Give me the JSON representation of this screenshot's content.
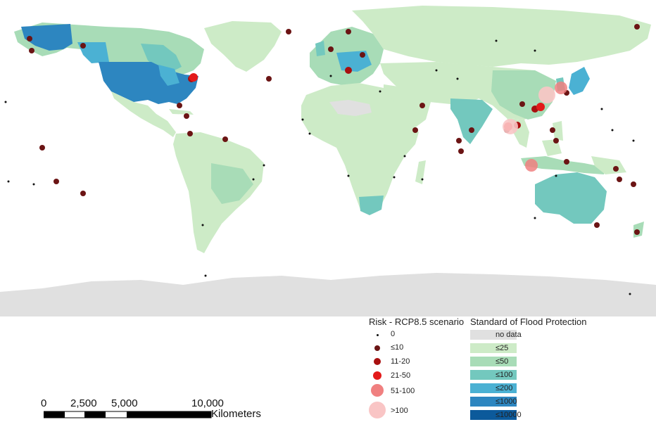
{
  "risk_legend": {
    "title": "Risk - RCP8.5 scenario",
    "items": [
      {
        "label": "0",
        "color": "#111111"
      },
      {
        "label": "≤10",
        "color": "#6b1414"
      },
      {
        "label": "11-20",
        "color": "#a80f0f"
      },
      {
        "label": "21-50",
        "color": "#e31a1a"
      },
      {
        "label": "51-100",
        "color": "#f08080"
      },
      {
        "label": ">100",
        "color": "#f9c5c5"
      }
    ]
  },
  "protection_legend": {
    "title": "Standard of Flood Protection",
    "items": [
      {
        "label": "no data",
        "color": "#e0e0e0"
      },
      {
        "label": "≤25",
        "color": "#cdebc7"
      },
      {
        "label": "≤50",
        "color": "#a8dcb7"
      },
      {
        "label": "≤100",
        "color": "#73c8be"
      },
      {
        "label": "≤200",
        "color": "#4bb1d3"
      },
      {
        "label": "≤1000",
        "color": "#2d86c0"
      },
      {
        "label": "≤10000",
        "color": "#0c5a9b"
      }
    ]
  },
  "scale_bar": {
    "ticks": [
      "0",
      "2,500",
      "5,000",
      "10,000"
    ],
    "unit": "Kilometers"
  },
  "colors": {
    "ocean": "#ffffff",
    "antarctica": "#e0e0e0",
    "land_default": "#cdebc7"
  }
}
